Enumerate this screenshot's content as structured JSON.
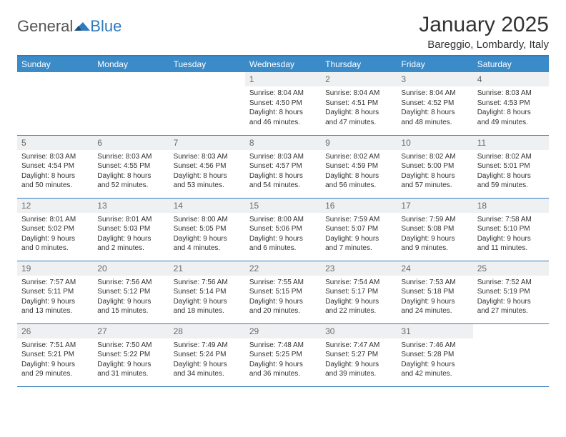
{
  "brand": {
    "general": "General",
    "blue": "Blue"
  },
  "title": "January 2025",
  "location": "Bareggio, Lombardy, Italy",
  "colors": {
    "accent": "#3b8bc9",
    "rule": "#2f7bbf",
    "daystrip": "#eef0f2"
  },
  "weekdays": [
    "Sunday",
    "Monday",
    "Tuesday",
    "Wednesday",
    "Thursday",
    "Friday",
    "Saturday"
  ],
  "weeks": [
    [
      null,
      null,
      null,
      {
        "n": "1",
        "sr": "8:04 AM",
        "ss": "4:50 PM",
        "dl": "8 hours and 46 minutes."
      },
      {
        "n": "2",
        "sr": "8:04 AM",
        "ss": "4:51 PM",
        "dl": "8 hours and 47 minutes."
      },
      {
        "n": "3",
        "sr": "8:04 AM",
        "ss": "4:52 PM",
        "dl": "8 hours and 48 minutes."
      },
      {
        "n": "4",
        "sr": "8:03 AM",
        "ss": "4:53 PM",
        "dl": "8 hours and 49 minutes."
      }
    ],
    [
      {
        "n": "5",
        "sr": "8:03 AM",
        "ss": "4:54 PM",
        "dl": "8 hours and 50 minutes."
      },
      {
        "n": "6",
        "sr": "8:03 AM",
        "ss": "4:55 PM",
        "dl": "8 hours and 52 minutes."
      },
      {
        "n": "7",
        "sr": "8:03 AM",
        "ss": "4:56 PM",
        "dl": "8 hours and 53 minutes."
      },
      {
        "n": "8",
        "sr": "8:03 AM",
        "ss": "4:57 PM",
        "dl": "8 hours and 54 minutes."
      },
      {
        "n": "9",
        "sr": "8:02 AM",
        "ss": "4:59 PM",
        "dl": "8 hours and 56 minutes."
      },
      {
        "n": "10",
        "sr": "8:02 AM",
        "ss": "5:00 PM",
        "dl": "8 hours and 57 minutes."
      },
      {
        "n": "11",
        "sr": "8:02 AM",
        "ss": "5:01 PM",
        "dl": "8 hours and 59 minutes."
      }
    ],
    [
      {
        "n": "12",
        "sr": "8:01 AM",
        "ss": "5:02 PM",
        "dl": "9 hours and 0 minutes."
      },
      {
        "n": "13",
        "sr": "8:01 AM",
        "ss": "5:03 PM",
        "dl": "9 hours and 2 minutes."
      },
      {
        "n": "14",
        "sr": "8:00 AM",
        "ss": "5:05 PM",
        "dl": "9 hours and 4 minutes."
      },
      {
        "n": "15",
        "sr": "8:00 AM",
        "ss": "5:06 PM",
        "dl": "9 hours and 6 minutes."
      },
      {
        "n": "16",
        "sr": "7:59 AM",
        "ss": "5:07 PM",
        "dl": "9 hours and 7 minutes."
      },
      {
        "n": "17",
        "sr": "7:59 AM",
        "ss": "5:08 PM",
        "dl": "9 hours and 9 minutes."
      },
      {
        "n": "18",
        "sr": "7:58 AM",
        "ss": "5:10 PM",
        "dl": "9 hours and 11 minutes."
      }
    ],
    [
      {
        "n": "19",
        "sr": "7:57 AM",
        "ss": "5:11 PM",
        "dl": "9 hours and 13 minutes."
      },
      {
        "n": "20",
        "sr": "7:56 AM",
        "ss": "5:12 PM",
        "dl": "9 hours and 15 minutes."
      },
      {
        "n": "21",
        "sr": "7:56 AM",
        "ss": "5:14 PM",
        "dl": "9 hours and 18 minutes."
      },
      {
        "n": "22",
        "sr": "7:55 AM",
        "ss": "5:15 PM",
        "dl": "9 hours and 20 minutes."
      },
      {
        "n": "23",
        "sr": "7:54 AM",
        "ss": "5:17 PM",
        "dl": "9 hours and 22 minutes."
      },
      {
        "n": "24",
        "sr": "7:53 AM",
        "ss": "5:18 PM",
        "dl": "9 hours and 24 minutes."
      },
      {
        "n": "25",
        "sr": "7:52 AM",
        "ss": "5:19 PM",
        "dl": "9 hours and 27 minutes."
      }
    ],
    [
      {
        "n": "26",
        "sr": "7:51 AM",
        "ss": "5:21 PM",
        "dl": "9 hours and 29 minutes."
      },
      {
        "n": "27",
        "sr": "7:50 AM",
        "ss": "5:22 PM",
        "dl": "9 hours and 31 minutes."
      },
      {
        "n": "28",
        "sr": "7:49 AM",
        "ss": "5:24 PM",
        "dl": "9 hours and 34 minutes."
      },
      {
        "n": "29",
        "sr": "7:48 AM",
        "ss": "5:25 PM",
        "dl": "9 hours and 36 minutes."
      },
      {
        "n": "30",
        "sr": "7:47 AM",
        "ss": "5:27 PM",
        "dl": "9 hours and 39 minutes."
      },
      {
        "n": "31",
        "sr": "7:46 AM",
        "ss": "5:28 PM",
        "dl": "9 hours and 42 minutes."
      },
      null
    ]
  ],
  "labels": {
    "sunrise": "Sunrise:",
    "sunset": "Sunset:",
    "daylight": "Daylight:"
  }
}
